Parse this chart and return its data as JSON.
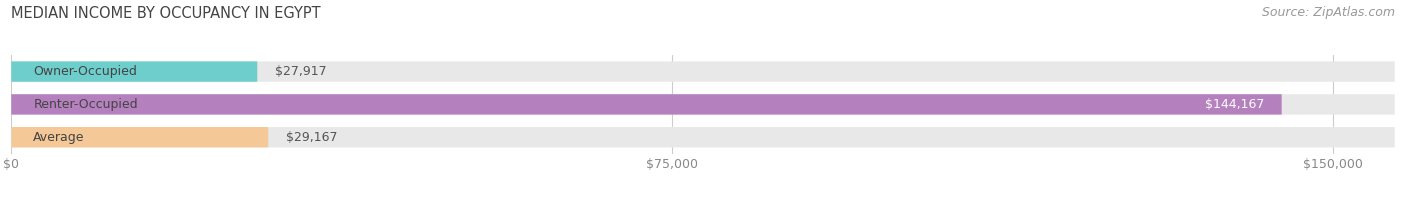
{
  "title": "MEDIAN INCOME BY OCCUPANCY IN EGYPT",
  "source": "Source: ZipAtlas.com",
  "categories": [
    "Owner-Occupied",
    "Renter-Occupied",
    "Average"
  ],
  "values": [
    27917,
    144167,
    29167
  ],
  "bar_colors": [
    "#6dcecb",
    "#b580be",
    "#f5c898"
  ],
  "bar_bg_color": "#e8e8e8",
  "value_labels": [
    "$27,917",
    "$144,167",
    "$29,167"
  ],
  "label_inside_bar": [
    false,
    true,
    false
  ],
  "x_ticks": [
    0,
    75000,
    150000
  ],
  "x_tick_labels": [
    "$0",
    "$75,000",
    "$150,000"
  ],
  "xlim_max": 157000,
  "title_fontsize": 10.5,
  "cat_fontsize": 9,
  "val_fontsize": 9,
  "tick_fontsize": 9,
  "source_fontsize": 9,
  "background_color": "#ffffff",
  "grid_color": "#cccccc",
  "title_color": "#444444",
  "cat_label_color": "#444444",
  "val_label_color_outside": "#555555",
  "val_label_color_inside": "#ffffff",
  "source_color": "#999999",
  "tick_color": "#888888"
}
